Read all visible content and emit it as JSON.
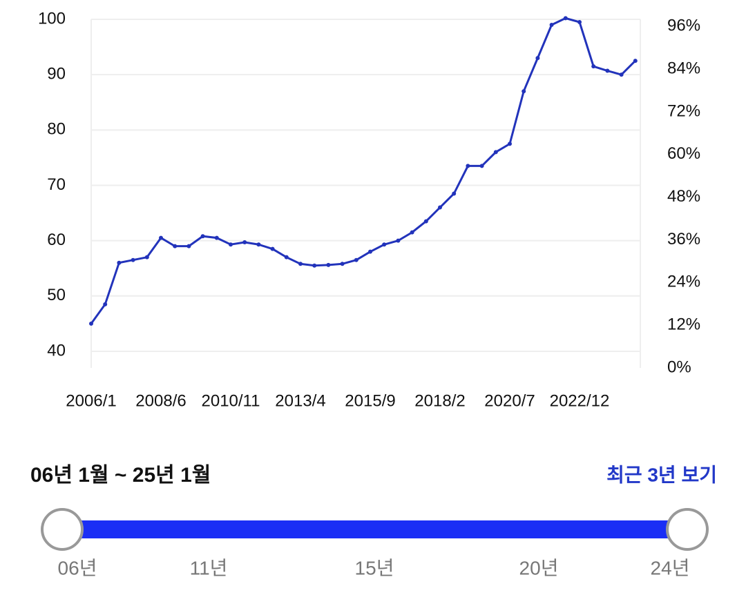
{
  "chart_data": {
    "type": "line",
    "categories": [
      "2006/1",
      null,
      null,
      null,
      null,
      "2008/6",
      null,
      null,
      null,
      null,
      "2010/11",
      null,
      null,
      null,
      null,
      "2013/4",
      null,
      null,
      null,
      null,
      "2015/9",
      null,
      null,
      null,
      null,
      "2018/2",
      null,
      null,
      null,
      null,
      "2020/7",
      null,
      null,
      null,
      null,
      "2022/12",
      null,
      null,
      null,
      null
    ],
    "series": [
      {
        "color": "#2233bb",
        "values": [
          45,
          48.5,
          56,
          56.5,
          57,
          60.5,
          59,
          59,
          60.8,
          60.5,
          59.3,
          59.7,
          59.3,
          58.5,
          57,
          55.8,
          55.5,
          55.6,
          55.8,
          56.5,
          58,
          59.3,
          60,
          61.5,
          63.5,
          66,
          68.5,
          73.5,
          73.5,
          76,
          77.5,
          87,
          93,
          99,
          100.2,
          99.5,
          91.5,
          90.7,
          90,
          92.5
        ]
      }
    ],
    "ylim": [
      37,
      100
    ],
    "yticks": [
      40,
      50,
      60,
      70,
      80,
      90,
      100
    ],
    "y2lim": [
      0,
      98
    ],
    "y2ticks": [
      {
        "value": 0,
        "label": "0%"
      },
      {
        "value": 12,
        "label": "12%"
      },
      {
        "value": 24,
        "label": "24%"
      },
      {
        "value": 36,
        "label": "36%"
      },
      {
        "value": 48,
        "label": "48%"
      },
      {
        "value": 60,
        "label": "60%"
      },
      {
        "value": 72,
        "label": "72%"
      },
      {
        "value": 84,
        "label": "84%"
      },
      {
        "value": 96,
        "label": "96%"
      }
    ],
    "grid": true
  },
  "range_label": "06년 1월 ~ 25년 1월",
  "recent_button": "최근 3년 보기",
  "slider_labels": [
    "06년",
    "11년",
    "15년",
    "20년",
    "24년"
  ]
}
